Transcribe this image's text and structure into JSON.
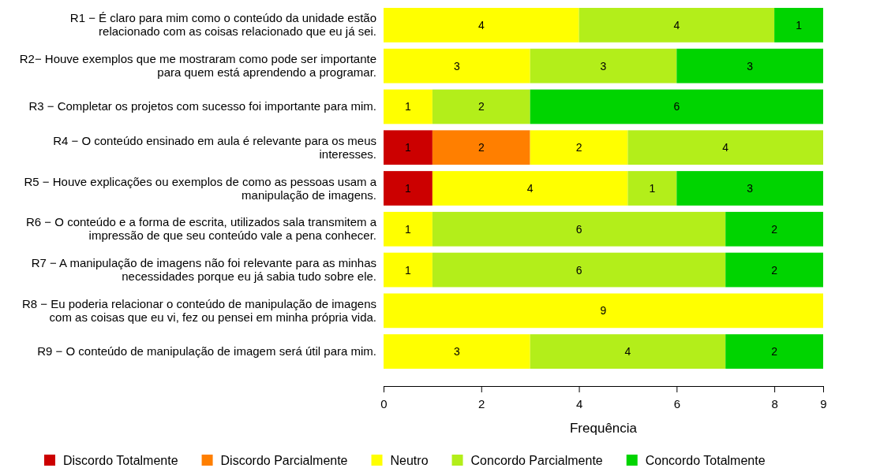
{
  "chart_data": {
    "type": "bar",
    "orientation": "horizontal",
    "stacked": true,
    "xlabel": "Frequência",
    "categories": [
      "R1 − É claro para mim como o conteúdo da unidade estão relacionado com as coisas relacionado que eu já sei.",
      "R2− Houve exemplos que me mostraram como pode ser importante para quem está aprendendo a programar.",
      "R3 − Completar os projetos com sucesso foi importante para mim.",
      "R4 − O conteúdo ensinado em aula é relevante para os meus interesses.",
      "R5 − Houve explicações ou exemplos de como as pessoas usam a manipulação de imagens.",
      "R6 − O conteúdo e a forma de escrita, utilizados sala transmitem a impressão de que seu conteúdo vale a pena conhecer.",
      "R7 − A manipulação de imagens não foi relevante para as minhas necessidades porque eu já sabia tudo sobre ele.",
      "R8 − Eu poderia relacionar o conteúdo de manipulação de imagens com as coisas que eu vi, fez ou pensei em minha própria vida.",
      "R9 − O conteúdo de manipulação de imagem será útil para mim."
    ],
    "series": [
      {
        "name": "Discordo Totalmente",
        "color": "#cc0000",
        "values": [
          null,
          null,
          null,
          1,
          1,
          null,
          null,
          null,
          null
        ]
      },
      {
        "name": "Discordo Parcialmente",
        "color": "#ff7f00",
        "values": [
          null,
          null,
          null,
          2,
          null,
          null,
          null,
          null,
          null
        ]
      },
      {
        "name": "Neutro",
        "color": "#ffff00",
        "values": [
          4,
          3,
          1,
          2,
          4,
          1,
          1,
          9,
          3
        ]
      },
      {
        "name": "Concordo Parcialmente",
        "color": "#b3ee1a",
        "values": [
          4,
          3,
          2,
          4,
          1,
          6,
          6,
          null,
          4
        ]
      },
      {
        "name": "Concordo Totalmente",
        "color": "#00d400",
        "values": [
          1,
          3,
          6,
          null,
          3,
          2,
          2,
          null,
          2
        ]
      }
    ],
    "xlim": [
      0,
      9
    ],
    "xticks": [
      0,
      2,
      4,
      6,
      8,
      9
    ],
    "data_labels": true,
    "legend": "bottom",
    "grid": false
  }
}
